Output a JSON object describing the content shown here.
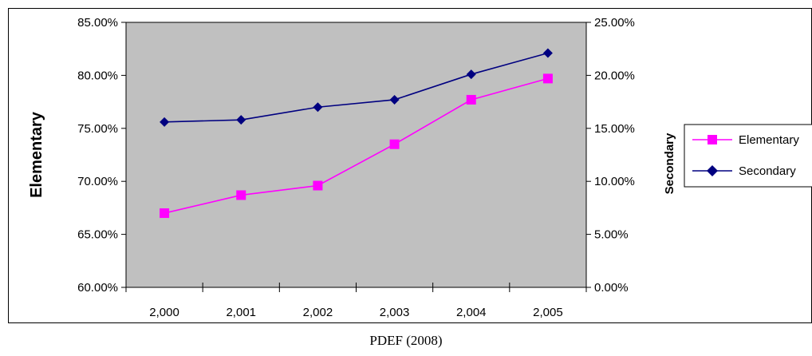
{
  "chart_data": {
    "type": "line",
    "x": [
      2000,
      2001,
      2002,
      2003,
      2004,
      2005
    ],
    "x_tick_labels": [
      "2,000",
      "2,001",
      "2,002",
      "2,003",
      "2,004",
      "2,005"
    ],
    "series": [
      {
        "name": "Elementary",
        "axis": "left",
        "color": "#ff00ff",
        "marker": "square",
        "values": [
          67.0,
          68.7,
          69.6,
          73.5,
          77.7,
          79.7
        ]
      },
      {
        "name": "Secondary",
        "axis": "right",
        "color": "#000080",
        "marker": "diamond",
        "values": [
          15.6,
          15.8,
          17.0,
          17.7,
          20.1,
          22.1
        ]
      }
    ],
    "ylabel_left": "Elementary",
    "ylabel_right": "Secondary",
    "ylim_left": [
      60,
      85
    ],
    "ylim_right": [
      0,
      25
    ],
    "yticks_left": [
      "60.00%",
      "65.00%",
      "70.00%",
      "75.00%",
      "80.00%",
      "85.00%"
    ],
    "yticks_right": [
      "0.00%",
      "5.00%",
      "10.00%",
      "15.00%",
      "20.00%",
      "25.00%"
    ],
    "plot_background": "#c0c0c0",
    "legend_position": "right",
    "grid": false
  },
  "caption": "PDEF (2008)"
}
